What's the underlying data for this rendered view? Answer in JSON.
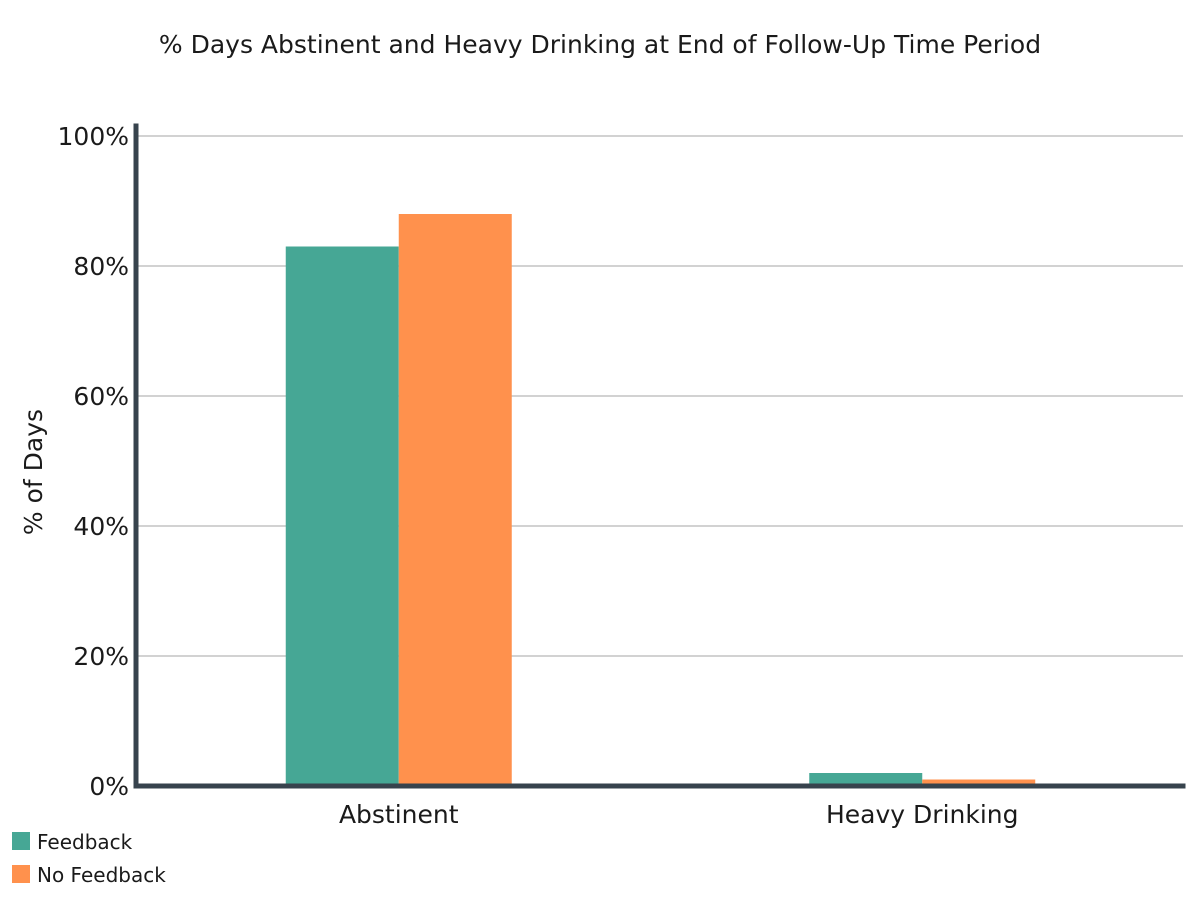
{
  "chart_data": {
    "type": "bar",
    "title": "% Days Abstinent and Heavy Drinking at End of Follow-Up Time Period",
    "xlabel": "",
    "ylabel": "% of Days",
    "categories": [
      "Abstinent",
      "Heavy Drinking"
    ],
    "series": [
      {
        "name": "Feedback",
        "color": "#46a795",
        "values": [
          83,
          2
        ]
      },
      {
        "name": "No Feedback",
        "color": "#ff914d",
        "values": [
          88,
          1
        ]
      }
    ],
    "ylim": [
      0,
      100
    ],
    "yticks": [
      0,
      20,
      40,
      60,
      80,
      100
    ],
    "ytick_labels": [
      "0%",
      "20%",
      "40%",
      "60%",
      "80%",
      "100%"
    ],
    "grid": true,
    "legend_position": "bottom-left"
  }
}
